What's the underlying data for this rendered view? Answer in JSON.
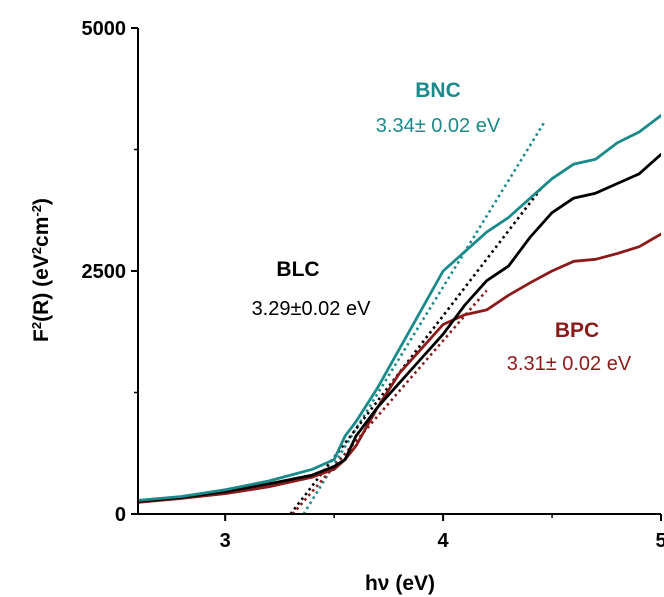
{
  "chart_data": {
    "type": "line",
    "xlabel": "hν (eV)",
    "ylabel_parts": {
      "base": "F",
      "sup1": "2",
      "mid": "(R) (eV",
      "sup2": "2",
      "mid2": "cm",
      "sup3": "-2",
      "end": ")"
    },
    "xlim": [
      2.6,
      5.0
    ],
    "ylim": [
      0,
      5000
    ],
    "x_ticks": [
      3,
      4,
      5
    ],
    "x_tick_labels": [
      "3",
      "4",
      "5"
    ],
    "y_ticks": [
      0,
      2500,
      5000
    ],
    "y_tick_labels": [
      "0",
      "2500",
      "5000"
    ],
    "grid": false,
    "legend": "none",
    "series": [
      {
        "name": "BNC",
        "color": "#1a8a8a",
        "x": [
          2.6,
          2.8,
          3.0,
          3.2,
          3.4,
          3.5,
          3.55,
          3.6,
          3.7,
          3.8,
          3.9,
          4.0,
          4.1,
          4.2,
          4.3,
          4.4,
          4.5,
          4.6,
          4.7,
          4.8,
          4.9,
          5.0
        ],
        "values": [
          140,
          180,
          250,
          340,
          460,
          560,
          800,
          950,
          1300,
          1700,
          2100,
          2500,
          2700,
          2900,
          3050,
          3250,
          3450,
          3600,
          3650,
          3820,
          3930,
          4100
        ]
      },
      {
        "name": "BLC",
        "color": "#000000",
        "x": [
          2.6,
          2.8,
          3.0,
          3.2,
          3.4,
          3.5,
          3.55,
          3.6,
          3.7,
          3.8,
          3.9,
          4.0,
          4.1,
          4.2,
          4.3,
          4.4,
          4.5,
          4.6,
          4.7,
          4.8,
          4.9,
          5.0
        ],
        "values": [
          130,
          170,
          230,
          310,
          400,
          490,
          560,
          800,
          1100,
          1350,
          1600,
          1850,
          2150,
          2400,
          2550,
          2850,
          3100,
          3250,
          3300,
          3400,
          3500,
          3700
        ]
      },
      {
        "name": "BPC",
        "color": "#8b1a1a",
        "x": [
          2.6,
          2.8,
          3.0,
          3.2,
          3.4,
          3.5,
          3.55,
          3.6,
          3.7,
          3.8,
          3.9,
          4.0,
          4.1,
          4.2,
          4.3,
          4.4,
          4.5,
          4.6,
          4.7,
          4.8,
          4.9,
          5.0
        ],
        "values": [
          120,
          160,
          210,
          280,
          380,
          460,
          560,
          700,
          1100,
          1450,
          1700,
          1950,
          2050,
          2100,
          2250,
          2380,
          2500,
          2600,
          2620,
          2680,
          2750,
          2880
        ]
      }
    ],
    "fits": [
      {
        "series": "BNC",
        "color": "#1a8a8a",
        "x": [
          3.36,
          4.47
        ],
        "values": [
          0,
          4050
        ]
      },
      {
        "series": "BLC",
        "color": "#000000",
        "x": [
          3.3,
          4.45
        ],
        "values": [
          0,
          3350
        ]
      },
      {
        "series": "BPC",
        "color": "#8b1a1a",
        "x": [
          3.31,
          4.2
        ],
        "values": [
          0,
          2300
        ]
      }
    ],
    "annotations": [
      {
        "id": "bnc",
        "name": "BNC",
        "value": "3.34± 0.02 eV",
        "color": "#1a8a8a"
      },
      {
        "id": "blc",
        "name": "BLC",
        "value": "3.29±0.02 eV",
        "color": "#000000"
      },
      {
        "id": "bpc",
        "name": "BPC",
        "value": "3.31± 0.02 eV",
        "color": "#8b1a1a"
      }
    ]
  }
}
